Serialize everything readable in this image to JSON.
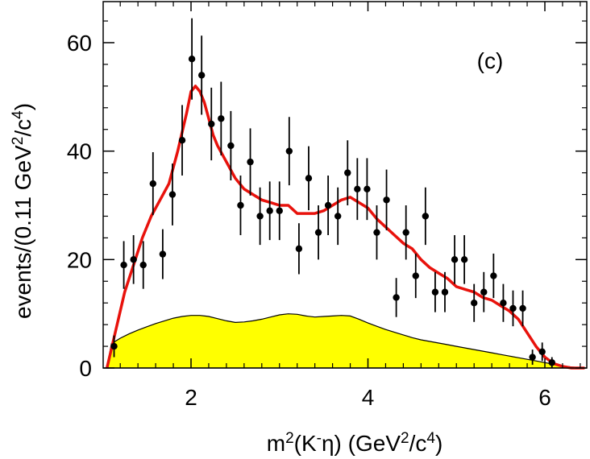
{
  "chart_data": {
    "type": "scatter",
    "panel_label": "(c)",
    "xlabel": {
      "base": "m",
      "sup1": "2",
      "mid": "(K",
      "sup2": "-",
      "tail": "η) (GeV",
      "sup3": "2",
      "mid2": "/c",
      "sup4": "4",
      "end": ")"
    },
    "ylabel": {
      "base": "events/(0.11 GeV",
      "sup1": "2",
      "mid": "/c",
      "sup2": "4",
      "end": ")"
    },
    "xlim": [
      1.05,
      6.45
    ],
    "ylim": [
      0,
      68
    ],
    "x_ticks": [
      2,
      4,
      6
    ],
    "x_tick_labels": [
      "2",
      "4",
      "6"
    ],
    "y_ticks": [
      0,
      20,
      40,
      60
    ],
    "y_tick_labels": [
      "0",
      "20",
      "40",
      "60"
    ],
    "colors": {
      "fit": "#e8120c",
      "background_fill": "#ffff00",
      "points": "#000000"
    },
    "data_points": {
      "x": [
        1.13,
        1.24,
        1.35,
        1.46,
        1.57,
        1.68,
        1.79,
        1.9,
        2.01,
        2.12,
        2.23,
        2.34,
        2.45,
        2.56,
        2.67,
        2.78,
        2.89,
        3.0,
        3.11,
        3.22,
        3.33,
        3.44,
        3.55,
        3.66,
        3.77,
        3.88,
        3.99,
        4.1,
        4.21,
        4.32,
        4.43,
        4.54,
        4.65,
        4.76,
        4.87,
        4.98,
        5.09,
        5.2,
        5.31,
        5.42,
        5.53,
        5.64,
        5.75,
        5.86,
        5.97,
        6.08
      ],
      "y": [
        4,
        19,
        20,
        19,
        34,
        21,
        32,
        42,
        57,
        54,
        45,
        46,
        41,
        30,
        38,
        28,
        29,
        29,
        40,
        22,
        35,
        25,
        30,
        28,
        36,
        33,
        33,
        25,
        31,
        13,
        25,
        17,
        28,
        14,
        14,
        20,
        20,
        12,
        14,
        17,
        12,
        11,
        11,
        2,
        3,
        1
      ],
      "err": [
        2,
        4.4,
        4.5,
        4.4,
        5.8,
        4.6,
        5.7,
        6.5,
        7.5,
        7.3,
        6.7,
        6.8,
        6.4,
        5.5,
        6.2,
        5.3,
        5.4,
        5.4,
        6.3,
        4.7,
        5.9,
        5.0,
        5.5,
        5.3,
        6.0,
        5.7,
        5.7,
        5.0,
        5.6,
        3.6,
        5.0,
        4.1,
        5.3,
        3.7,
        3.7,
        4.5,
        4.5,
        3.5,
        3.7,
        4.1,
        3.5,
        3.3,
        3.3,
        1.4,
        1.7,
        1.0
      ]
    },
    "series": [
      {
        "name": "total fit",
        "x": [
          1.05,
          1.15,
          1.25,
          1.35,
          1.45,
          1.55,
          1.65,
          1.75,
          1.85,
          1.95,
          2.0,
          2.05,
          2.1,
          2.15,
          2.2,
          2.25,
          2.3,
          2.4,
          2.5,
          2.6,
          2.7,
          2.8,
          2.9,
          3.0,
          3.1,
          3.2,
          3.3,
          3.4,
          3.5,
          3.6,
          3.7,
          3.8,
          3.9,
          4.0,
          4.1,
          4.2,
          4.3,
          4.4,
          4.5,
          4.6,
          4.7,
          4.8,
          4.9,
          5.0,
          5.1,
          5.2,
          5.3,
          5.4,
          5.5,
          5.6,
          5.7,
          5.8,
          5.9,
          6.0,
          6.1,
          6.2,
          6.3,
          6.45
        ],
        "y": [
          0,
          7,
          14,
          19,
          24,
          28,
          31,
          34,
          40,
          47,
          51,
          52,
          51,
          49,
          46,
          43,
          41,
          38,
          35,
          33,
          32,
          31,
          30.5,
          30,
          30,
          28.5,
          28.5,
          28.5,
          29,
          30,
          31,
          31.5,
          30.5,
          29.5,
          27.5,
          26,
          24.5,
          23,
          22,
          20,
          18.5,
          17.5,
          16.5,
          15,
          14.5,
          14,
          13,
          12.5,
          11.5,
          10.5,
          9,
          6.5,
          4,
          2,
          0.8,
          0.3,
          0,
          0
        ]
      },
      {
        "name": "background",
        "x": [
          1.05,
          1.1,
          1.2,
          1.3,
          1.4,
          1.5,
          1.6,
          1.7,
          1.8,
          1.9,
          2.0,
          2.1,
          2.2,
          2.3,
          2.4,
          2.5,
          2.6,
          2.7,
          2.8,
          2.9,
          3.0,
          3.1,
          3.2,
          3.3,
          3.4,
          3.5,
          3.6,
          3.7,
          3.8,
          3.9,
          4.0,
          4.1,
          4.2,
          4.3,
          4.4,
          4.5,
          4.6,
          4.7,
          4.8,
          4.9,
          5.0,
          5.1,
          5.2,
          5.3,
          5.4,
          5.5,
          5.6,
          5.7,
          5.8,
          5.9,
          6.0,
          6.1,
          6.2,
          6.3,
          6.45
        ],
        "y": [
          0,
          4.5,
          5.5,
          6.3,
          7.0,
          7.6,
          8.2,
          8.7,
          9.2,
          9.5,
          9.7,
          9.7,
          9.5,
          9.1,
          8.7,
          8.4,
          8.5,
          8.7,
          9.0,
          9.4,
          9.8,
          10.0,
          9.9,
          9.6,
          9.4,
          9.5,
          9.6,
          9.7,
          9.6,
          9.0,
          8.3,
          7.7,
          7.1,
          6.6,
          6.1,
          5.6,
          5.2,
          4.9,
          4.6,
          4.3,
          4.0,
          3.7,
          3.4,
          3.1,
          2.8,
          2.5,
          2.2,
          1.9,
          1.6,
          1.3,
          1.0,
          0.7,
          0.4,
          0.2,
          0
        ]
      }
    ]
  }
}
